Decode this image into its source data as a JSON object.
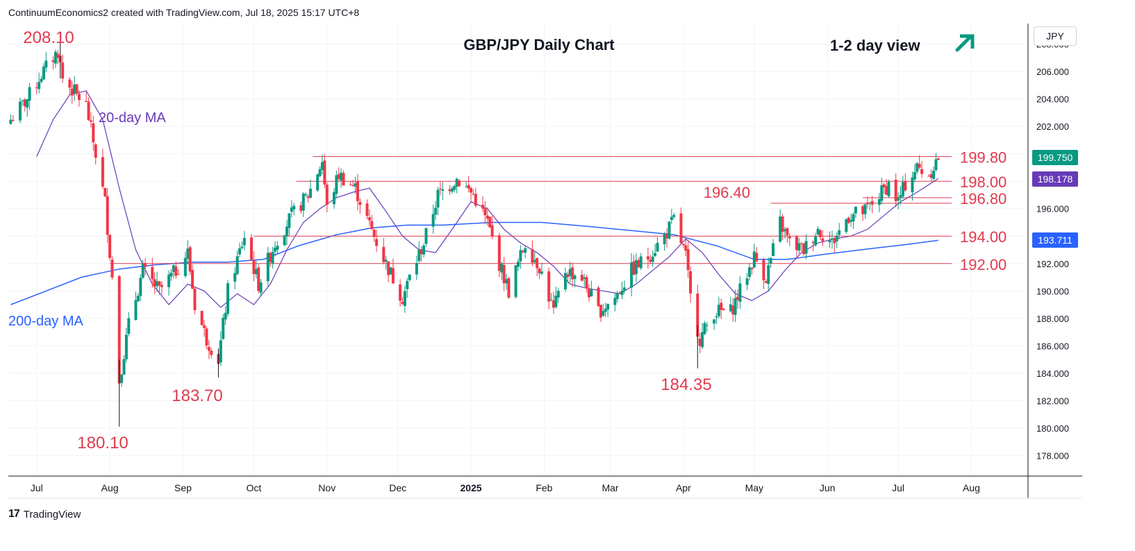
{
  "header": {
    "text": "ContinuumEconomics2 created with TradingView.com, Jul 18, 2025 15:17 UTC+8"
  },
  "footer": {
    "brand": "TradingView"
  },
  "currency_button": "JPY",
  "price_tags": {
    "last": "199.750",
    "ma20": "198.178",
    "ma200": "193.711"
  },
  "colors": {
    "up": "#089981",
    "down": "#f23645",
    "ma20": "#673ab7",
    "ma200": "#2962ff",
    "level": "#e03a4e",
    "tag_last": "#089981",
    "tag_ma20": "#673ab7",
    "tag_ma200": "#2962ff"
  },
  "chart_data": {
    "type": "candlestick",
    "title": "GBP/JPY Daily Chart",
    "view_label": "1-2 day view",
    "view_icon": "arrow-up-right-icon",
    "ylim": [
      176.5,
      209.5
    ],
    "y_ticks": [
      "178.000",
      "180.000",
      "182.000",
      "184.000",
      "186.000",
      "188.000",
      "190.000",
      "192.000",
      "194.000",
      "196.000",
      "198.000",
      "200.000",
      "202.000",
      "204.000",
      "206.000",
      "208.000"
    ],
    "x_ticks": [
      "Jul",
      "Aug",
      "Sep",
      "Oct",
      "Nov",
      "Dec",
      "2025",
      "Feb",
      "Mar",
      "Apr",
      "May",
      "Jun",
      "Jul",
      "Aug"
    ],
    "horizontal_levels": [
      {
        "label": "199.80",
        "value": 199.8
      },
      {
        "label": "198.00",
        "value": 198.0
      },
      {
        "label": "196.80",
        "value": 196.8
      },
      {
        "label": "196.40",
        "value": 196.4
      },
      {
        "label": "194.00",
        "value": 194.0
      },
      {
        "label": "192.00",
        "value": 192.0
      }
    ],
    "annotations": [
      {
        "text": "208.10",
        "value": 208.1
      },
      {
        "text": "180.10",
        "value": 180.1
      },
      {
        "text": "183.70",
        "value": 183.7
      },
      {
        "text": "184.35",
        "value": 184.35
      }
    ],
    "series_labels": [
      {
        "text": "20-day MA"
      },
      {
        "text": "200-day MA"
      }
    ],
    "ma20": [
      {
        "x": "2024-07-01",
        "y": 199.8
      },
      {
        "x": "2024-07-08",
        "y": 202.5
      },
      {
        "x": "2024-07-15",
        "y": 204.3
      },
      {
        "x": "2024-07-22",
        "y": 204.6
      },
      {
        "x": "2024-07-29",
        "y": 202.5
      },
      {
        "x": "2024-08-05",
        "y": 197.5
      },
      {
        "x": "2024-08-12",
        "y": 193.0
      },
      {
        "x": "2024-08-19",
        "y": 190.5
      },
      {
        "x": "2024-08-26",
        "y": 189.0
      },
      {
        "x": "2024-09-03",
        "y": 190.5
      },
      {
        "x": "2024-09-10",
        "y": 190.0
      },
      {
        "x": "2024-09-17",
        "y": 188.8
      },
      {
        "x": "2024-09-24",
        "y": 189.8
      },
      {
        "x": "2024-10-01",
        "y": 189.0
      },
      {
        "x": "2024-10-08",
        "y": 190.5
      },
      {
        "x": "2024-10-15",
        "y": 193.0
      },
      {
        "x": "2024-10-22",
        "y": 195.0
      },
      {
        "x": "2024-10-29",
        "y": 196.0
      },
      {
        "x": "2024-11-05",
        "y": 196.8
      },
      {
        "x": "2024-11-12",
        "y": 197.2
      },
      {
        "x": "2024-11-19",
        "y": 197.5
      },
      {
        "x": "2024-11-26",
        "y": 195.8
      },
      {
        "x": "2024-12-03",
        "y": 194.0
      },
      {
        "x": "2024-12-10",
        "y": 193.0
      },
      {
        "x": "2024-12-17",
        "y": 192.8
      },
      {
        "x": "2024-12-24",
        "y": 194.5
      },
      {
        "x": "2025-01-01",
        "y": 196.5
      },
      {
        "x": "2025-01-08",
        "y": 196.0
      },
      {
        "x": "2025-01-15",
        "y": 194.5
      },
      {
        "x": "2025-01-22",
        "y": 193.5
      },
      {
        "x": "2025-01-29",
        "y": 192.8
      },
      {
        "x": "2025-02-05",
        "y": 191.8
      },
      {
        "x": "2025-02-12",
        "y": 190.5
      },
      {
        "x": "2025-02-19",
        "y": 190.2
      },
      {
        "x": "2025-02-26",
        "y": 190.0
      },
      {
        "x": "2025-03-05",
        "y": 189.8
      },
      {
        "x": "2025-03-12",
        "y": 190.5
      },
      {
        "x": "2025-03-19",
        "y": 191.5
      },
      {
        "x": "2025-03-26",
        "y": 192.5
      },
      {
        "x": "2025-04-02",
        "y": 193.8
      },
      {
        "x": "2025-04-09",
        "y": 192.8
      },
      {
        "x": "2025-04-16",
        "y": 191.2
      },
      {
        "x": "2025-04-23",
        "y": 189.8
      },
      {
        "x": "2025-04-30",
        "y": 189.3
      },
      {
        "x": "2025-05-07",
        "y": 190.0
      },
      {
        "x": "2025-05-14",
        "y": 191.5
      },
      {
        "x": "2025-05-21",
        "y": 192.8
      },
      {
        "x": "2025-05-28",
        "y": 193.5
      },
      {
        "x": "2025-06-04",
        "y": 193.8
      },
      {
        "x": "2025-06-11",
        "y": 194.0
      },
      {
        "x": "2025-06-18",
        "y": 194.5
      },
      {
        "x": "2025-06-25",
        "y": 195.5
      },
      {
        "x": "2025-07-02",
        "y": 196.5
      },
      {
        "x": "2025-07-09",
        "y": 197.2
      },
      {
        "x": "2025-07-18",
        "y": 198.2
      }
    ],
    "ma200": [
      {
        "x": "2024-06-20",
        "y": 189.0
      },
      {
        "x": "2024-07-05",
        "y": 190.0
      },
      {
        "x": "2024-07-20",
        "y": 191.0
      },
      {
        "x": "2024-08-05",
        "y": 191.6
      },
      {
        "x": "2024-08-20",
        "y": 191.9
      },
      {
        "x": "2024-09-05",
        "y": 192.1
      },
      {
        "x": "2024-09-20",
        "y": 192.1
      },
      {
        "x": "2024-10-05",
        "y": 192.3
      },
      {
        "x": "2024-10-20",
        "y": 193.3
      },
      {
        "x": "2024-11-05",
        "y": 194.1
      },
      {
        "x": "2024-11-20",
        "y": 194.6
      },
      {
        "x": "2024-12-05",
        "y": 194.8
      },
      {
        "x": "2024-12-20",
        "y": 194.8
      },
      {
        "x": "2025-01-10",
        "y": 195.0
      },
      {
        "x": "2025-01-31",
        "y": 195.0
      },
      {
        "x": "2025-02-20",
        "y": 194.7
      },
      {
        "x": "2025-03-10",
        "y": 194.4
      },
      {
        "x": "2025-03-28",
        "y": 194.1
      },
      {
        "x": "2025-04-15",
        "y": 193.3
      },
      {
        "x": "2025-05-01",
        "y": 192.3
      },
      {
        "x": "2025-05-15",
        "y": 192.3
      },
      {
        "x": "2025-06-01",
        "y": 192.7
      },
      {
        "x": "2025-06-20",
        "y": 193.1
      },
      {
        "x": "2025-07-05",
        "y": 193.4
      },
      {
        "x": "2025-07-18",
        "y": 193.7
      }
    ],
    "close_anchors": [
      {
        "x": "2024-06-20",
        "y": 202.5
      },
      {
        "x": "2024-06-27",
        "y": 204.0
      },
      {
        "x": "2024-07-03",
        "y": 205.8
      },
      {
        "x": "2024-07-10",
        "y": 207.5
      },
      {
        "x": "2024-07-12",
        "y": 205.5
      },
      {
        "x": "2024-07-17",
        "y": 204.5
      },
      {
        "x": "2024-07-22",
        "y": 203.5
      },
      {
        "x": "2024-07-26",
        "y": 200.0
      },
      {
        "x": "2024-07-30",
        "y": 196.5
      },
      {
        "x": "2024-08-02",
        "y": 191.0
      },
      {
        "x": "2024-08-05",
        "y": 183.5
      },
      {
        "x": "2024-08-09",
        "y": 187.5
      },
      {
        "x": "2024-08-15",
        "y": 191.5
      },
      {
        "x": "2024-08-22",
        "y": 190.0
      },
      {
        "x": "2024-08-29",
        "y": 191.5
      },
      {
        "x": "2024-09-03",
        "y": 192.8
      },
      {
        "x": "2024-09-06",
        "y": 189.0
      },
      {
        "x": "2024-09-11",
        "y": 186.5
      },
      {
        "x": "2024-09-16",
        "y": 185.0
      },
      {
        "x": "2024-09-20",
        "y": 190.0
      },
      {
        "x": "2024-09-27",
        "y": 194.0
      },
      {
        "x": "2024-10-03",
        "y": 190.5
      },
      {
        "x": "2024-10-10",
        "y": 193.5
      },
      {
        "x": "2024-10-17",
        "y": 195.5
      },
      {
        "x": "2024-10-24",
        "y": 197.0
      },
      {
        "x": "2024-10-30",
        "y": 199.5
      },
      {
        "x": "2024-11-01",
        "y": 196.0
      },
      {
        "x": "2024-11-06",
        "y": 198.5
      },
      {
        "x": "2024-11-13",
        "y": 197.5
      },
      {
        "x": "2024-11-19",
        "y": 194.8
      },
      {
        "x": "2024-11-26",
        "y": 192.0
      },
      {
        "x": "2024-12-03",
        "y": 189.5
      },
      {
        "x": "2024-12-06",
        "y": 191.0
      },
      {
        "x": "2024-12-12",
        "y": 193.5
      },
      {
        "x": "2024-12-18",
        "y": 197.0
      },
      {
        "x": "2024-12-26",
        "y": 198.2
      },
      {
        "x": "2025-01-02",
        "y": 197.0
      },
      {
        "x": "2025-01-08",
        "y": 195.0
      },
      {
        "x": "2025-01-13",
        "y": 192.0
      },
      {
        "x": "2025-01-17",
        "y": 190.0
      },
      {
        "x": "2025-01-24",
        "y": 193.5
      },
      {
        "x": "2025-01-30",
        "y": 191.8
      },
      {
        "x": "2025-02-05",
        "y": 188.5
      },
      {
        "x": "2025-02-10",
        "y": 191.5
      },
      {
        "x": "2025-02-17",
        "y": 191.0
      },
      {
        "x": "2025-02-24",
        "y": 188.5
      },
      {
        "x": "2025-03-03",
        "y": 189.5
      },
      {
        "x": "2025-03-10",
        "y": 191.5
      },
      {
        "x": "2025-03-17",
        "y": 192.5
      },
      {
        "x": "2025-03-24",
        "y": 194.0
      },
      {
        "x": "2025-03-28",
        "y": 195.2
      },
      {
        "x": "2025-04-02",
        "y": 192.5
      },
      {
        "x": "2025-04-04",
        "y": 189.5
      },
      {
        "x": "2025-04-08",
        "y": 186.5
      },
      {
        "x": "2025-04-14",
        "y": 188.5
      },
      {
        "x": "2025-04-21",
        "y": 188.5
      },
      {
        "x": "2025-04-25",
        "y": 190.0
      },
      {
        "x": "2025-05-01",
        "y": 192.5
      },
      {
        "x": "2025-05-06",
        "y": 191.0
      },
      {
        "x": "2025-05-12",
        "y": 195.0
      },
      {
        "x": "2025-05-16",
        "y": 193.5
      },
      {
        "x": "2025-05-22",
        "y": 193.0
      },
      {
        "x": "2025-05-28",
        "y": 194.5
      },
      {
        "x": "2025-06-03",
        "y": 193.5
      },
      {
        "x": "2025-06-10",
        "y": 195.5
      },
      {
        "x": "2025-06-17",
        "y": 195.8
      },
      {
        "x": "2025-06-23",
        "y": 197.0
      },
      {
        "x": "2025-06-27",
        "y": 197.8
      },
      {
        "x": "2025-07-01",
        "y": 196.5
      },
      {
        "x": "2025-07-04",
        "y": 197.8
      },
      {
        "x": "2025-07-09",
        "y": 199.0
      },
      {
        "x": "2025-07-14",
        "y": 198.5
      },
      {
        "x": "2025-07-18",
        "y": 199.75
      }
    ]
  }
}
